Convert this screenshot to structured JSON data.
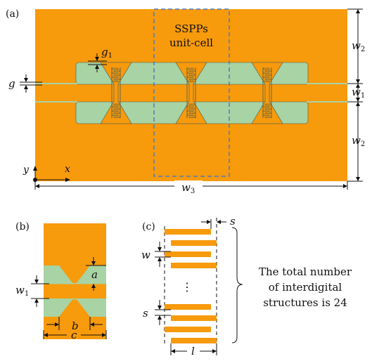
{
  "colors": {
    "metal": "#F79A0C",
    "substrate": "#A8D3A4",
    "outline": "#4a5a4a",
    "dashed_box": "#4a7ec2",
    "ink": "#111111"
  },
  "panel_a": {
    "label": "(a)",
    "unit_cell_title_1": "SSPPs",
    "unit_cell_title_2": "unit-cell",
    "dim_g1": "g",
    "dim_g1_sub": "1",
    "dim_g": "g",
    "dim_w2_top": "w",
    "dim_w2_top_sub": "2",
    "dim_w1": "w",
    "dim_w1_sub": "1",
    "dim_w2_bottom": "w",
    "dim_w2_bottom_sub": "2",
    "dim_w3": "w",
    "dim_w3_sub": "3",
    "axis_y": "y",
    "axis_x": "x",
    "unit_cell_count": 3
  },
  "panel_b": {
    "label": "(b)",
    "dim_a": "a",
    "dim_w1": "w",
    "dim_w1_sub": "1",
    "dim_b": "b",
    "dim_c": "c"
  },
  "panel_c": {
    "label": "(c)",
    "dim_s_top": "s",
    "dim_w": "w",
    "dim_s_mid": "s",
    "dim_l": "l",
    "ellipsis": "⋮",
    "note_line_1": "The total number",
    "note_line_2": "of interdigital",
    "note_line_3": "structures is 24"
  }
}
